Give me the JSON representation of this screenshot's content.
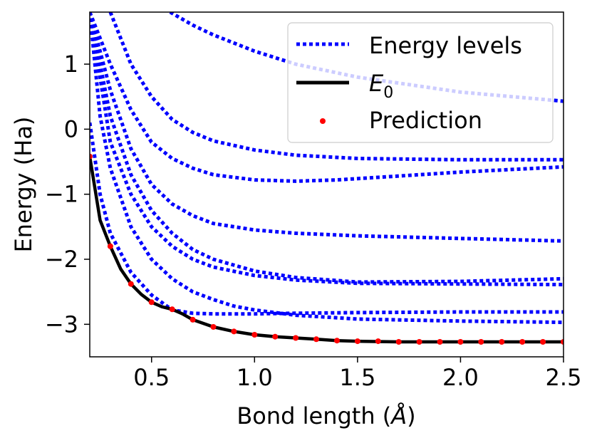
{
  "chart_data": {
    "type": "line",
    "title": "",
    "xlabel": "Bond length (",
    "xlabel_unit": "Å",
    "xlabel_close": ")",
    "ylabel": "Energy (Ha)",
    "xlim": [
      0.2,
      2.5
    ],
    "ylim": [
      -3.5,
      1.8
    ],
    "xticks": [
      0.5,
      1.0,
      1.5,
      2.0,
      2.5
    ],
    "xtick_labels": [
      "0.5",
      "1.0",
      "1.5",
      "2.0",
      "2.5"
    ],
    "yticks": [
      1,
      0,
      -1,
      -2,
      -3
    ],
    "ytick_labels": [
      "1",
      "0",
      "−1",
      "−2",
      "−3"
    ],
    "legend": {
      "position": "top-right",
      "entries": [
        {
          "label": "Energy levels",
          "style": "dotted",
          "color": "#0000ff"
        },
        {
          "label": "E",
          "subscript": "0",
          "style": "solid",
          "color": "#000000"
        },
        {
          "label": "Prediction",
          "style": "marker",
          "color": "#ff0000"
        }
      ]
    },
    "colors": {
      "levels": "#0000ff",
      "ground": "#000000",
      "prediction": "#ff0000"
    },
    "energy_levels": [
      {
        "name": "level-1",
        "x": [
          0.2,
          0.25,
          0.3,
          0.4,
          0.5,
          0.6,
          0.7,
          0.8,
          1.0,
          1.2,
          1.5,
          2.0,
          2.5
        ],
        "y": [
          0.1,
          -1.0,
          -1.6,
          -2.2,
          -2.55,
          -2.78,
          -2.83,
          -2.84,
          -2.84,
          -2.83,
          -2.82,
          -2.81,
          -2.81
        ]
      },
      {
        "name": "level-2",
        "x": [
          0.2,
          0.25,
          0.3,
          0.4,
          0.5,
          0.6,
          0.7,
          0.8,
          0.9,
          1.0,
          1.2,
          1.5,
          2.0,
          2.5
        ],
        "y": [
          1.8,
          0.2,
          -0.6,
          -1.5,
          -2.0,
          -2.3,
          -2.5,
          -2.62,
          -2.72,
          -2.78,
          -2.86,
          -2.92,
          -2.95,
          -2.97
        ]
      },
      {
        "name": "level-3",
        "x": [
          0.2,
          0.3,
          0.4,
          0.5,
          0.6,
          0.7,
          0.8,
          1.0,
          1.2,
          1.5,
          2.0,
          2.5
        ],
        "y": [
          1.8,
          -0.2,
          -1.0,
          -1.5,
          -1.8,
          -2.0,
          -2.12,
          -2.25,
          -2.32,
          -2.37,
          -2.38,
          -2.39
        ]
      },
      {
        "name": "level-4",
        "x": [
          0.2,
          0.3,
          0.4,
          0.5,
          0.6,
          0.7,
          0.8,
          1.0,
          1.2,
          1.5,
          2.0,
          2.5
        ],
        "y": [
          1.8,
          0.2,
          -0.7,
          -1.25,
          -1.6,
          -1.85,
          -2.0,
          -2.18,
          -2.28,
          -2.35,
          -2.34,
          -2.3
        ]
      },
      {
        "name": "level-5",
        "x": [
          0.2,
          0.3,
          0.4,
          0.5,
          0.6,
          0.7,
          0.8,
          1.0,
          1.2,
          1.5,
          2.0,
          2.5
        ],
        "y": [
          1.8,
          0.6,
          -0.3,
          -0.85,
          -1.15,
          -1.33,
          -1.45,
          -1.55,
          -1.6,
          -1.64,
          -1.68,
          -1.72
        ]
      },
      {
        "name": "level-6",
        "x": [
          0.2,
          0.3,
          0.4,
          0.5,
          0.6,
          0.7,
          0.8,
          1.0,
          1.2,
          1.4,
          1.6,
          2.0,
          2.5
        ],
        "y": [
          1.8,
          1.0,
          0.3,
          -0.2,
          -0.45,
          -0.6,
          -0.7,
          -0.78,
          -0.8,
          -0.78,
          -0.74,
          -0.66,
          -0.58
        ]
      },
      {
        "name": "level-7",
        "x": [
          0.3,
          0.4,
          0.5,
          0.6,
          0.7,
          0.8,
          1.0,
          1.2,
          1.5,
          2.0,
          2.5
        ],
        "y": [
          1.8,
          1.0,
          0.5,
          0.15,
          -0.05,
          -0.18,
          -0.32,
          -0.4,
          -0.45,
          -0.47,
          -0.47
        ]
      },
      {
        "name": "level-8",
        "x": [
          0.59,
          0.7,
          0.8,
          1.0,
          1.2,
          1.5,
          2.0,
          2.5
        ],
        "y": [
          1.8,
          1.6,
          1.45,
          1.2,
          1.0,
          0.8,
          0.57,
          0.43
        ]
      }
    ],
    "ground_state": {
      "x": [
        0.2,
        0.25,
        0.3,
        0.35,
        0.4,
        0.45,
        0.5,
        0.55,
        0.6,
        0.65,
        0.7,
        0.8,
        0.9,
        1.0,
        1.1,
        1.2,
        1.3,
        1.4,
        1.5,
        1.7,
        2.0,
        2.3,
        2.5
      ],
      "y": [
        -0.42,
        -1.4,
        -1.8,
        -2.15,
        -2.38,
        -2.54,
        -2.66,
        -2.73,
        -2.77,
        -2.84,
        -2.93,
        -3.04,
        -3.11,
        -3.16,
        -3.19,
        -3.21,
        -3.23,
        -3.25,
        -3.26,
        -3.27,
        -3.27,
        -3.27,
        -3.27
      ]
    },
    "prediction": {
      "x": [
        0.2,
        0.3,
        0.4,
        0.5,
        0.6,
        0.7,
        0.8,
        0.9,
        1.0,
        1.1,
        1.2,
        1.3,
        1.4,
        1.5,
        1.6,
        1.7,
        1.8,
        1.9,
        2.0,
        2.1,
        2.2,
        2.3,
        2.4,
        2.5
      ],
      "y": [
        -0.42,
        -1.8,
        -2.38,
        -2.66,
        -2.77,
        -2.93,
        -3.04,
        -3.11,
        -3.16,
        -3.19,
        -3.21,
        -3.23,
        -3.25,
        -3.26,
        -3.26,
        -3.27,
        -3.27,
        -3.27,
        -3.27,
        -3.27,
        -3.27,
        -3.27,
        -3.27,
        -3.27
      ]
    }
  }
}
